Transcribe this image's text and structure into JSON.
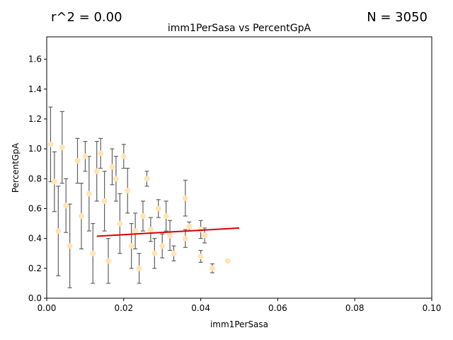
{
  "header": {
    "r2_text": "r^2 = 0.00",
    "n_text": "N = 3050"
  },
  "chart_data": {
    "type": "scatter",
    "title": "imm1PerSasa vs PercentGpA",
    "xlabel": "imm1PerSasa",
    "ylabel": "PercentGpA",
    "xlim": [
      0,
      0.1
    ],
    "ylim": [
      0,
      1.75
    ],
    "xticks": [
      0,
      0.02,
      0.04,
      0.06,
      0.08,
      0.1
    ],
    "xtick_labels": [
      "0.00",
      "0.02",
      "0.04",
      "0.06",
      "0.08",
      "0.10"
    ],
    "yticks": [
      0,
      0.2,
      0.4,
      0.6,
      0.8,
      1.0,
      1.2,
      1.4,
      1.6
    ],
    "ytick_labels": [
      "0.0",
      "0.2",
      "0.4",
      "0.6",
      "0.8",
      "1.0",
      "1.2",
      "1.4",
      "1.6"
    ],
    "grid": false,
    "colors": {
      "points": "#ffe4b5",
      "errorbars": "#606060",
      "fit_line": "#dd0000"
    },
    "points": [
      {
        "x": 0.001,
        "y": 1.03,
        "err": 0.25
      },
      {
        "x": 0.004,
        "y": 1.01,
        "err": 0.24
      },
      {
        "x": 0.002,
        "y": 0.78,
        "err": 0.2
      },
      {
        "x": 0.005,
        "y": 0.62,
        "err": 0.18
      },
      {
        "x": 0.003,
        "y": 0.45,
        "err": 0.3
      },
      {
        "x": 0.006,
        "y": 0.35,
        "err": 0.28
      },
      {
        "x": 0.008,
        "y": 0.92,
        "err": 0.15
      },
      {
        "x": 0.009,
        "y": 0.55,
        "err": 0.22
      },
      {
        "x": 0.01,
        "y": 0.95,
        "err": 0.1
      },
      {
        "x": 0.011,
        "y": 0.7,
        "err": 0.25
      },
      {
        "x": 0.012,
        "y": 0.3,
        "err": 0.2
      },
      {
        "x": 0.013,
        "y": 0.85,
        "err": 0.2
      },
      {
        "x": 0.014,
        "y": 0.97,
        "err": 0.1
      },
      {
        "x": 0.015,
        "y": 0.65,
        "err": 0.2
      },
      {
        "x": 0.016,
        "y": 0.25,
        "err": 0.15
      },
      {
        "x": 0.017,
        "y": 0.88,
        "err": 0.12
      },
      {
        "x": 0.018,
        "y": 0.8,
        "err": 0.15
      },
      {
        "x": 0.019,
        "y": 0.5,
        "err": 0.2
      },
      {
        "x": 0.02,
        "y": 0.95,
        "err": 0.08
      },
      {
        "x": 0.021,
        "y": 0.72,
        "err": 0.15
      },
      {
        "x": 0.022,
        "y": 0.35,
        "err": 0.15
      },
      {
        "x": 0.023,
        "y": 0.45,
        "err": 0.12
      },
      {
        "x": 0.024,
        "y": 0.2,
        "err": 0.1
      },
      {
        "x": 0.025,
        "y": 0.55,
        "err": 0.1
      },
      {
        "x": 0.026,
        "y": 0.8,
        "err": 0.05
      },
      {
        "x": 0.027,
        "y": 0.46,
        "err": 0.08
      },
      {
        "x": 0.028,
        "y": 0.3,
        "err": 0.1
      },
      {
        "x": 0.029,
        "y": 0.6,
        "err": 0.06
      },
      {
        "x": 0.03,
        "y": 0.35,
        "err": 0.08
      },
      {
        "x": 0.031,
        "y": 0.55,
        "err": 0.1
      },
      {
        "x": 0.032,
        "y": 0.42,
        "err": 0.1
      },
      {
        "x": 0.033,
        "y": 0.3,
        "err": 0.05
      },
      {
        "x": 0.036,
        "y": 0.67,
        "err": 0.12
      },
      {
        "x": 0.036,
        "y": 0.4,
        "err": 0.06
      },
      {
        "x": 0.037,
        "y": 0.48,
        "err": 0.03
      },
      {
        "x": 0.04,
        "y": 0.46,
        "err": 0.06
      },
      {
        "x": 0.04,
        "y": 0.28,
        "err": 0.04
      },
      {
        "x": 0.041,
        "y": 0.42,
        "err": 0.05
      },
      {
        "x": 0.043,
        "y": 0.2,
        "err": 0.03
      },
      {
        "x": 0.047,
        "y": 0.25,
        "err": 0.0
      }
    ],
    "fit_line": {
      "x": [
        0.013,
        0.05
      ],
      "y": [
        0.415,
        0.47
      ]
    }
  }
}
